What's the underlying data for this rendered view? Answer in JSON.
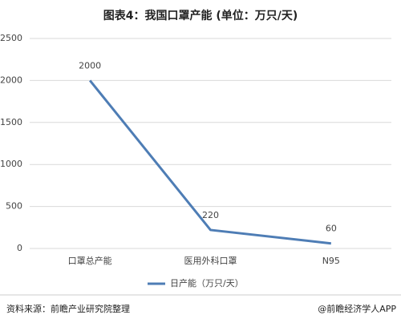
{
  "chart_data": {
    "type": "line",
    "title": "图表4：我国口罩产能 (单位：万只/天)",
    "categories": [
      "口罩总产能",
      "医用外科口罩",
      "N95"
    ],
    "series": [
      {
        "name": "日产能（万只/天）",
        "color": "#4e7db5",
        "values": [
          2000,
          220,
          60
        ]
      }
    ],
    "ylim": [
      0,
      2500
    ],
    "yticks": [
      0,
      500,
      1000,
      1500,
      2000,
      2500
    ],
    "grid": true,
    "legend": "bottom",
    "source": "资料来源：前瞻产业研究院整理",
    "credit": "@前瞻经济学人APP"
  }
}
